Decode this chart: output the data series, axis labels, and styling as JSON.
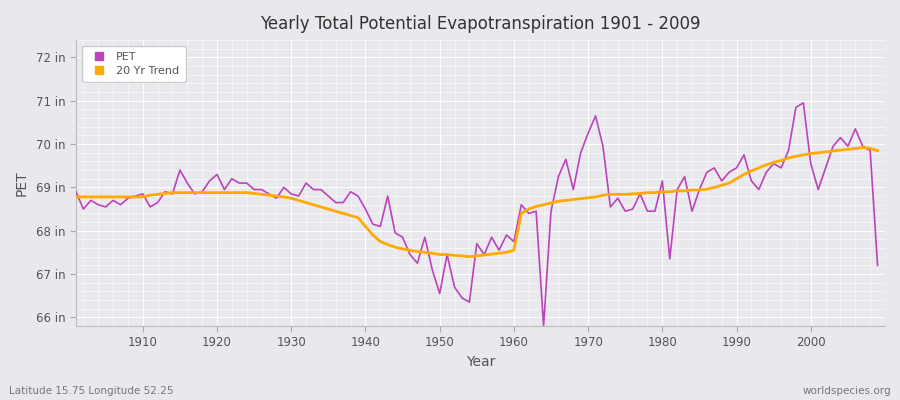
{
  "title": "Yearly Total Potential Evapotranspiration 1901 - 2009",
  "xlabel": "Year",
  "ylabel": "PET",
  "subtitle_left": "Latitude 15.75 Longitude 52.25",
  "subtitle_right": "worldspecies.org",
  "pet_color": "#bb44bb",
  "trend_color": "#ffaa00",
  "bg_color": "#e8e8ed",
  "ylim": [
    65.8,
    72.4
  ],
  "yticks": [
    66,
    67,
    68,
    69,
    70,
    71,
    72
  ],
  "ytick_labels": [
    "66 in",
    "67 in",
    "68 in",
    "69 in",
    "70 in",
    "71 in",
    "72 in"
  ],
  "xlim": [
    1901,
    2010
  ],
  "years": [
    1901,
    1902,
    1903,
    1904,
    1905,
    1906,
    1907,
    1908,
    1909,
    1910,
    1911,
    1912,
    1913,
    1914,
    1915,
    1916,
    1917,
    1918,
    1919,
    1920,
    1921,
    1922,
    1923,
    1924,
    1925,
    1926,
    1927,
    1928,
    1929,
    1930,
    1931,
    1932,
    1933,
    1934,
    1935,
    1936,
    1937,
    1938,
    1939,
    1940,
    1941,
    1942,
    1943,
    1944,
    1945,
    1946,
    1947,
    1948,
    1949,
    1950,
    1951,
    1952,
    1953,
    1954,
    1955,
    1956,
    1957,
    1958,
    1959,
    1960,
    1961,
    1962,
    1963,
    1964,
    1965,
    1966,
    1967,
    1968,
    1969,
    1970,
    1971,
    1972,
    1973,
    1974,
    1975,
    1976,
    1977,
    1978,
    1979,
    1980,
    1981,
    1982,
    1983,
    1984,
    1985,
    1986,
    1987,
    1988,
    1989,
    1990,
    1991,
    1992,
    1993,
    1994,
    1995,
    1996,
    1997,
    1998,
    1999,
    2000,
    2001,
    2002,
    2003,
    2004,
    2005,
    2006,
    2007,
    2008,
    2009
  ],
  "pet_values": [
    68.9,
    68.5,
    68.7,
    68.6,
    68.55,
    68.7,
    68.6,
    68.75,
    68.8,
    68.85,
    68.55,
    68.65,
    68.9,
    68.85,
    69.4,
    69.1,
    68.85,
    68.9,
    69.15,
    69.3,
    68.95,
    69.2,
    69.1,
    69.1,
    68.95,
    68.95,
    68.85,
    68.75,
    69.0,
    68.85,
    68.8,
    69.1,
    68.95,
    68.95,
    68.8,
    68.65,
    68.65,
    68.9,
    68.8,
    68.5,
    68.15,
    68.1,
    68.8,
    67.95,
    67.85,
    67.45,
    67.25,
    67.85,
    67.1,
    66.55,
    67.45,
    66.7,
    66.45,
    66.35,
    67.7,
    67.45,
    67.85,
    67.55,
    67.9,
    67.75,
    68.6,
    68.4,
    68.45,
    65.8,
    68.45,
    69.25,
    69.65,
    68.95,
    69.8,
    70.25,
    70.65,
    69.95,
    68.55,
    68.75,
    68.45,
    68.5,
    68.85,
    68.45,
    68.45,
    69.15,
    67.35,
    68.95,
    69.25,
    68.45,
    68.95,
    69.35,
    69.45,
    69.15,
    69.35,
    69.45,
    69.75,
    69.15,
    68.95,
    69.35,
    69.55,
    69.45,
    69.85,
    70.85,
    70.95,
    69.55,
    68.95,
    69.45,
    69.95,
    70.15,
    69.95,
    70.35,
    69.95,
    69.85,
    67.2
  ],
  "trend_years": [
    1901,
    1902,
    1903,
    1904,
    1905,
    1906,
    1907,
    1908,
    1909,
    1910,
    1911,
    1912,
    1913,
    1914,
    1915,
    1916,
    1917,
    1918,
    1919,
    1920,
    1921,
    1922,
    1923,
    1924,
    1925,
    1926,
    1927,
    1928,
    1929,
    1930,
    1931,
    1932,
    1933,
    1934,
    1935,
    1936,
    1937,
    1938,
    1939,
    1940,
    1941,
    1942,
    1943,
    1944,
    1945,
    1946,
    1947,
    1948,
    1949,
    1950,
    1951,
    1952,
    1953,
    1954,
    1955,
    1956,
    1957,
    1958,
    1959,
    1960,
    1961,
    1962,
    1963,
    1964,
    1965,
    1966,
    1967,
    1968,
    1969,
    1970,
    1971,
    1972,
    1973,
    1974,
    1975,
    1976,
    1977,
    1978,
    1979,
    1980,
    1981,
    1982,
    1983,
    1984,
    1985,
    1986,
    1987,
    1988,
    1989,
    1990,
    1991,
    1992,
    1993,
    1994,
    1995,
    1996,
    1997,
    1998,
    1999,
    2000,
    2001,
    2002,
    2003,
    2004,
    2005,
    2006,
    2007,
    2008,
    2009
  ],
  "trend_values": [
    68.78,
    68.78,
    68.78,
    68.78,
    68.78,
    68.78,
    68.78,
    68.78,
    68.78,
    68.78,
    68.82,
    68.84,
    68.86,
    68.88,
    68.88,
    68.88,
    68.88,
    68.88,
    68.88,
    68.88,
    68.88,
    68.88,
    68.88,
    68.88,
    68.86,
    68.84,
    68.82,
    68.8,
    68.78,
    68.75,
    68.7,
    68.65,
    68.6,
    68.55,
    68.5,
    68.45,
    68.4,
    68.35,
    68.3,
    68.1,
    67.9,
    67.75,
    67.68,
    67.62,
    67.58,
    67.55,
    67.52,
    67.5,
    67.48,
    67.45,
    67.45,
    67.43,
    67.42,
    67.4,
    67.42,
    67.44,
    67.46,
    67.48,
    67.5,
    67.55,
    68.4,
    68.5,
    68.56,
    68.6,
    68.64,
    68.68,
    68.7,
    68.72,
    68.74,
    68.76,
    68.78,
    68.82,
    68.84,
    68.84,
    68.84,
    68.85,
    68.86,
    68.88,
    68.88,
    68.9,
    68.9,
    68.92,
    68.92,
    68.94,
    68.94,
    68.96,
    69.0,
    69.05,
    69.1,
    69.2,
    69.3,
    69.38,
    69.45,
    69.52,
    69.58,
    69.62,
    69.68,
    69.72,
    69.75,
    69.78,
    69.8,
    69.82,
    69.84,
    69.86,
    69.88,
    69.9,
    69.92,
    69.9,
    69.85
  ]
}
